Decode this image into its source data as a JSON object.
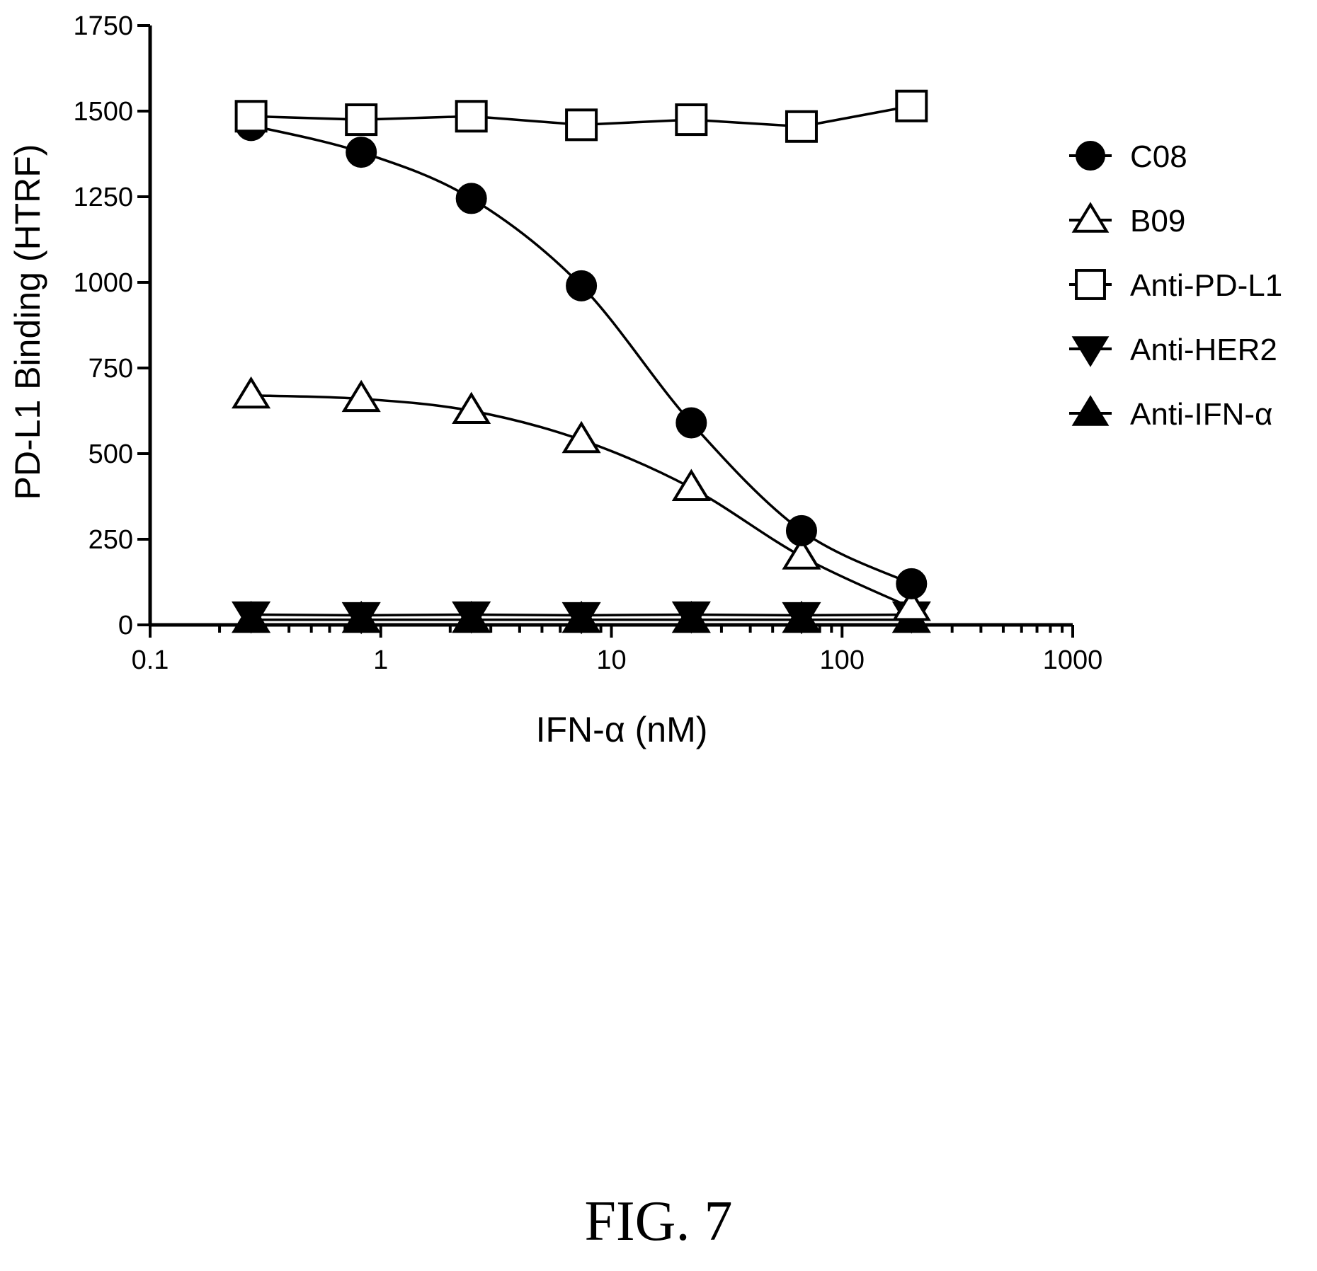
{
  "figure_caption": "FIG. 7",
  "chart_data": {
    "type": "scatter",
    "xlabel": "IFN-α (nM)",
    "ylabel": "PD-L1 Binding (HTRF)",
    "x_scale": "log",
    "xlim": [
      0.1,
      1000
    ],
    "ylim": [
      0,
      1750
    ],
    "x_ticks": [
      "0.1",
      "1",
      "10",
      "100",
      "1000"
    ],
    "y_ticks": [
      "0",
      "250",
      "500",
      "750",
      "1000",
      "1250",
      "1500",
      "1750"
    ],
    "legend_position": "right",
    "grid": false,
    "x": [
      0.274,
      0.823,
      2.47,
      7.41,
      22.2,
      66.7,
      200
    ],
    "series": [
      {
        "name": "C08",
        "marker": "circle-filled",
        "fit": "sigmoid",
        "values": [
          1458,
          1380,
          1245,
          990,
          590,
          275,
          120
        ]
      },
      {
        "name": "B09",
        "marker": "triangle-up-open",
        "fit": "sigmoid",
        "values": [
          670,
          660,
          625,
          540,
          400,
          200,
          50
        ]
      },
      {
        "name": "Anti-PD-L1",
        "marker": "square-open",
        "fit": "connect",
        "values": [
          1485,
          1475,
          1485,
          1460,
          1475,
          1455,
          1515
        ]
      },
      {
        "name": "Anti-HER2",
        "marker": "triangle-down-filled",
        "fit": "connect",
        "values": [
          30,
          28,
          30,
          28,
          30,
          28,
          30
        ]
      },
      {
        "name": "Anti-IFN-α",
        "marker": "triangle-up-filled",
        "fit": "connect",
        "values": [
          15,
          15,
          15,
          15,
          15,
          15,
          15
        ]
      }
    ]
  }
}
